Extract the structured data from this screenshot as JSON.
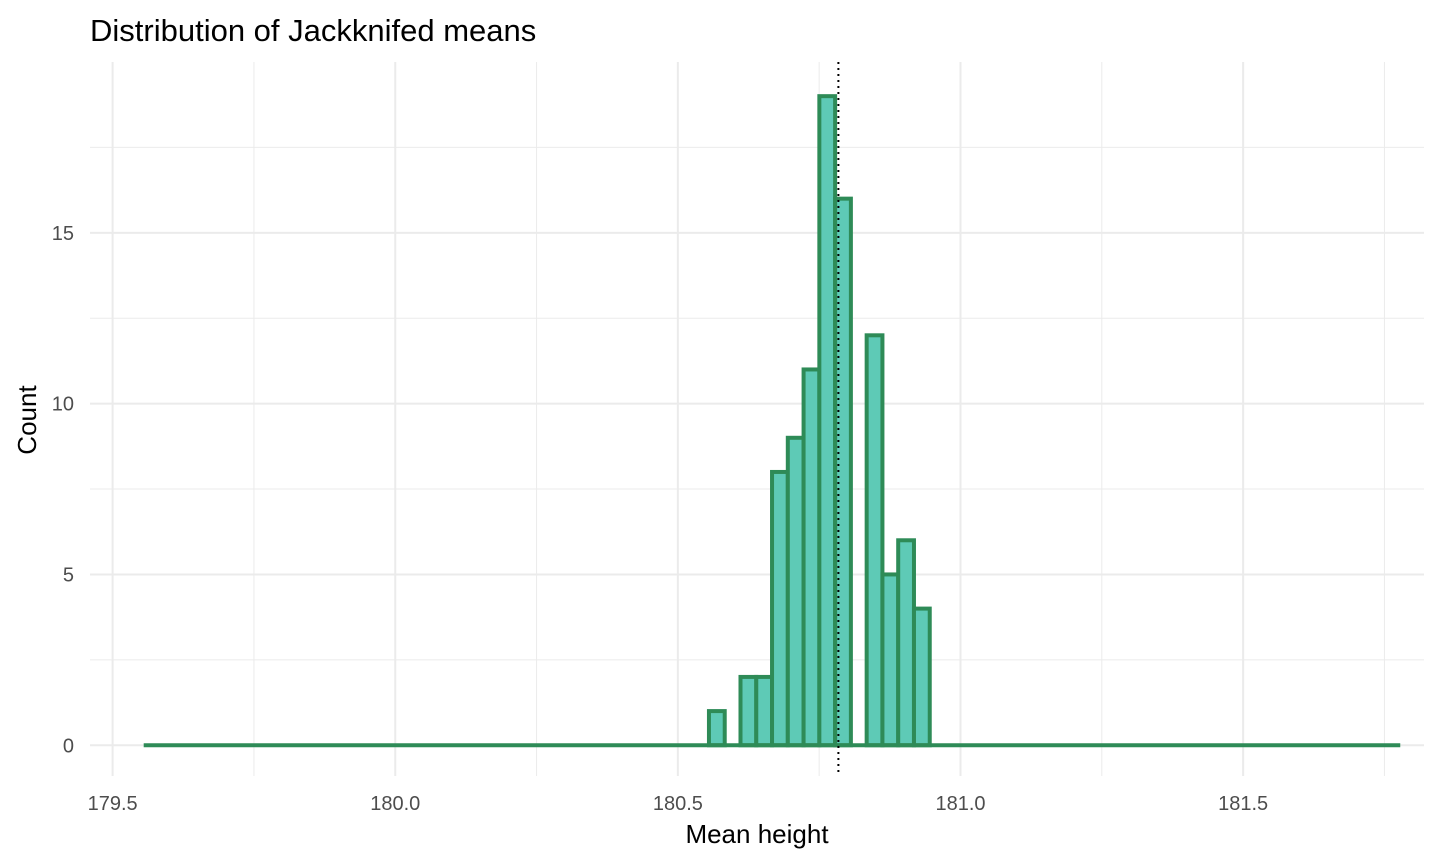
{
  "chart_data": {
    "type": "histogram",
    "title": "Distribution of Jackknifed means",
    "xlabel": "Mean height",
    "ylabel": "Count",
    "x_ticks": [
      "179.5",
      "180.0",
      "180.5",
      "181.0",
      "181.5"
    ],
    "x_tick_values": [
      179.5,
      180.0,
      180.5,
      181.0,
      181.5
    ],
    "y_ticks": [
      "0",
      "5",
      "10",
      "15"
    ],
    "y_tick_values": [
      0,
      5,
      10,
      15
    ],
    "xlim": [
      179.46,
      181.82
    ],
    "ylim": [
      -0.9,
      20.0
    ],
    "bin_width": 0.0279,
    "bins_start": 179.555,
    "bins_end": 181.778,
    "counts_start": 180.555,
    "counts": [
      1,
      0,
      2,
      2,
      8,
      9,
      11,
      19,
      16,
      0,
      12,
      5,
      6,
      4
    ],
    "mean_line": 180.784,
    "mean_line_style": "dotted",
    "grid": true,
    "colors": {
      "bar_fill": "#5ecab6",
      "bar_stroke": "#2e8b57",
      "grid": "#ebebeb",
      "mean_line": "#000000"
    }
  }
}
